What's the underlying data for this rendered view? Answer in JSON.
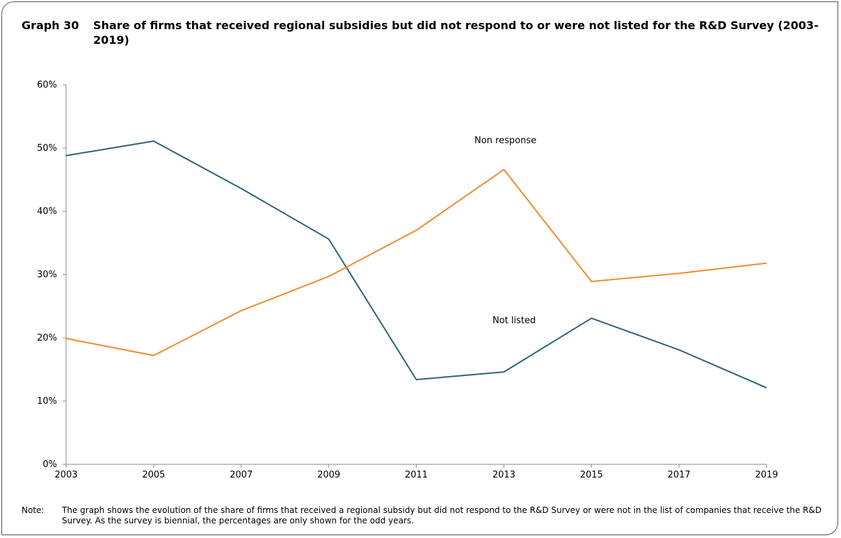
{
  "figure": {
    "number": "Graph 30",
    "title": "Share of firms that received regional subsidies but did not respond to or were not listed for the R&D Survey (2003-2019)",
    "note_label": "Note:",
    "note_text": "The graph shows the evolution of the share of firms that received a regional subsidy but did not respond to the R&D Survey or were not in the list of companies that receive the R&D Survey. As the survey is biennial, the percentages are only shown for the odd years."
  },
  "chart_data": {
    "type": "line",
    "title": "Share of firms that received regional subsidies but did not respond to or were not listed for the R&D Survey (2003-2019)",
    "categories": [
      "2003",
      "2005",
      "2007",
      "2009",
      "2011",
      "2013",
      "2015",
      "2017",
      "2019"
    ],
    "series": [
      {
        "name": "Not listed",
        "color": "#2e6278",
        "values": [
          48.8,
          51.1,
          43.6,
          35.6,
          13.4,
          14.6,
          23.1,
          18.1,
          12.1
        ]
      },
      {
        "name": "Non response",
        "color": "#f28a2c",
        "values": [
          19.9,
          17.2,
          24.3,
          29.7,
          37.0,
          46.6,
          28.9,
          30.2,
          31.8
        ]
      }
    ],
    "ylim": [
      0,
      60
    ],
    "yticks": [
      0,
      10,
      20,
      30,
      40,
      50,
      60
    ],
    "ytick_labels": [
      "0%",
      "10%",
      "20%",
      "30%",
      "40%",
      "50%",
      "60%"
    ],
    "xlabel": "",
    "ylabel": "",
    "grid": false,
    "legend": "inline labels"
  }
}
